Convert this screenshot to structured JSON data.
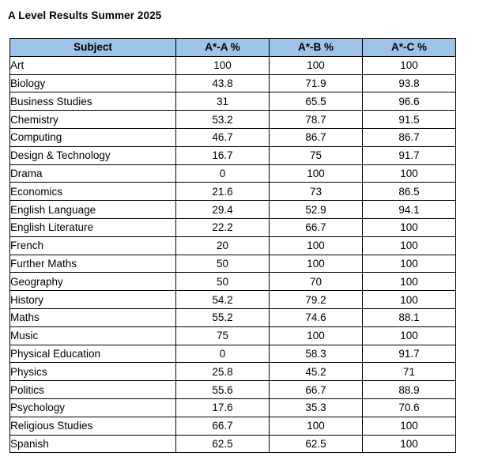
{
  "title": "A Level Results Summer 2025",
  "colors": {
    "header_bg": "#9DC3E6",
    "border": "#000000",
    "page_bg": "#FFFFFF",
    "text": "#000000"
  },
  "chart_data": {
    "type": "table",
    "title": "A Level Results Summer 2025",
    "columns": [
      "Subject",
      "A*-A %",
      "A*-B %",
      "A*-C %"
    ],
    "rows": [
      [
        "Art",
        "100",
        "100",
        "100"
      ],
      [
        "Biology",
        "43.8",
        "71.9",
        "93.8"
      ],
      [
        "Business Studies",
        "31",
        "65.5",
        "96.6"
      ],
      [
        "Chemistry",
        "53.2",
        "78.7",
        "91.5"
      ],
      [
        "Computing",
        "46.7",
        "86.7",
        "86.7"
      ],
      [
        "Design & Technology",
        "16.7",
        "75",
        "91.7"
      ],
      [
        "Drama",
        "0",
        "100",
        "100"
      ],
      [
        "Economics",
        "21.6",
        "73",
        "86.5"
      ],
      [
        "English Language",
        "29.4",
        "52.9",
        "94.1"
      ],
      [
        "English Literature",
        "22.2",
        "66.7",
        "100"
      ],
      [
        "French",
        "20",
        "100",
        "100"
      ],
      [
        "Further Maths",
        "50",
        "100",
        "100"
      ],
      [
        "Geography",
        "50",
        "70",
        "100"
      ],
      [
        "History",
        "54.2",
        "79.2",
        "100"
      ],
      [
        "Maths",
        "55.2",
        "74.6",
        "88.1"
      ],
      [
        "Music",
        "75",
        "100",
        "100"
      ],
      [
        "Physical Education",
        "0",
        "58.3",
        "91.7"
      ],
      [
        "Physics",
        "25.8",
        "45.2",
        "71"
      ],
      [
        "Politics",
        "55.6",
        "66.7",
        "88.9"
      ],
      [
        "Psychology",
        "17.6",
        "35.3",
        "70.6"
      ],
      [
        "Religious Studies",
        "66.7",
        "100",
        "100"
      ],
      [
        "Spanish",
        "62.5",
        "62.5",
        "100"
      ]
    ]
  }
}
